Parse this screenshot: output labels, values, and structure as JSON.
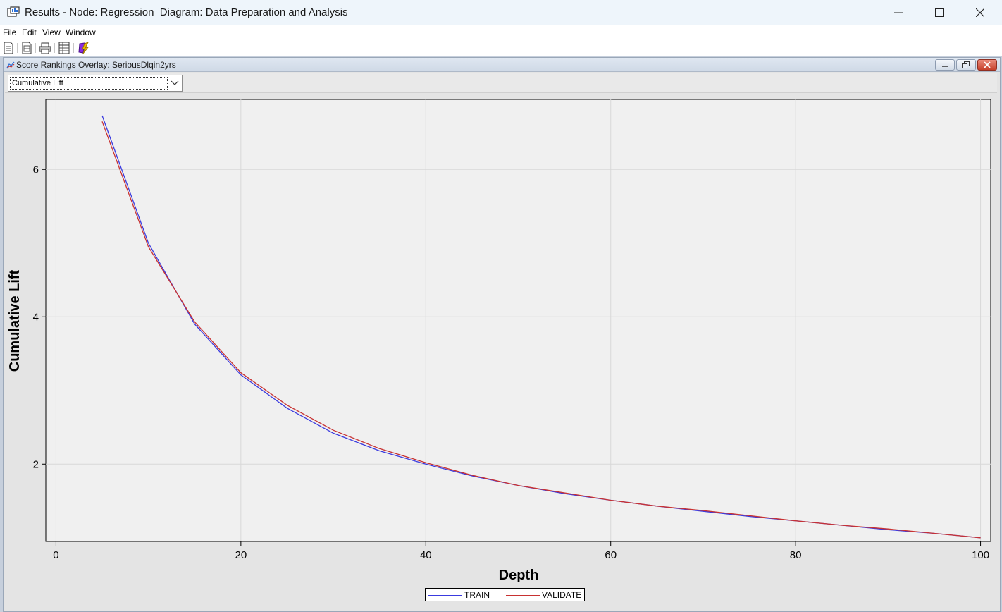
{
  "window": {
    "title": "Results - Node: Regression  Diagram: Data Preparation and Analysis"
  },
  "menu": [
    "File",
    "Edit",
    "View",
    "Window"
  ],
  "toolbar_icons": [
    "new-document-icon",
    "properties-icon",
    "print-icon",
    "table-view-icon",
    "run-icon"
  ],
  "child_window": {
    "title": "Score Rankings Overlay: SeriousDlqin2yrs"
  },
  "selector": {
    "value": "Cumulative Lift"
  },
  "colors": {
    "train": "#3a3adf",
    "validate": "#c83232",
    "plot_bg": "#f0f0f0",
    "grid": "#ffffff"
  },
  "chart_data": {
    "type": "line",
    "title": "",
    "xlabel": "Depth",
    "ylabel": "Cumulative Lift",
    "xlim": [
      -1.1,
      101.1
    ],
    "ylim": [
      0.95,
      6.95
    ],
    "xticks": [
      0,
      20,
      40,
      60,
      80,
      100
    ],
    "yticks": [
      2,
      4,
      6
    ],
    "grid": true,
    "legend": "bottom-center",
    "series": [
      {
        "name": "TRAIN",
        "x": [
          5,
          10,
          15,
          20,
          25,
          30,
          35,
          40,
          45,
          50,
          55,
          60,
          65,
          70,
          75,
          80,
          85,
          90,
          95,
          100
        ],
        "y": [
          6.73,
          5.0,
          3.9,
          3.21,
          2.76,
          2.42,
          2.18,
          2.0,
          1.84,
          1.71,
          1.6,
          1.51,
          1.43,
          1.36,
          1.29,
          1.23,
          1.17,
          1.11,
          1.06,
          1.0
        ]
      },
      {
        "name": "VALIDATE",
        "x": [
          5,
          10,
          15,
          20,
          25,
          30,
          35,
          40,
          45,
          50,
          55,
          60,
          65,
          70,
          75,
          80,
          85,
          90,
          95,
          100
        ],
        "y": [
          6.65,
          4.95,
          3.93,
          3.24,
          2.8,
          2.46,
          2.21,
          2.02,
          1.85,
          1.71,
          1.61,
          1.51,
          1.43,
          1.37,
          1.3,
          1.23,
          1.17,
          1.12,
          1.06,
          1.0
        ]
      }
    ]
  }
}
